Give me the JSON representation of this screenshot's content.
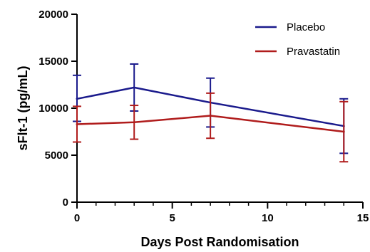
{
  "chart_data": {
    "type": "line",
    "xlabel": "Days Post Randomisation",
    "ylabel": "sFlt-1 (pg/mL)",
    "xlim": [
      0,
      15
    ],
    "ylim": [
      0,
      20000
    ],
    "x_ticks": [
      0,
      5,
      10,
      15
    ],
    "x_tick_labels": [
      "0",
      "5",
      "10",
      "15"
    ],
    "y_ticks": [
      0,
      5000,
      10000,
      15000,
      20000
    ],
    "y_tick_labels": [
      "0",
      "5000",
      "10000",
      "15000",
      "20000"
    ],
    "grid": false,
    "legend_position": "top-right",
    "series": [
      {
        "name": "Placebo",
        "color": "#1a1a8c",
        "x": [
          0,
          3,
          7,
          14
        ],
        "y": [
          11000,
          12200,
          10600,
          8100
        ],
        "err_low": [
          8600,
          9700,
          8000,
          5200
        ],
        "err_high": [
          13500,
          14700,
          13200,
          11000
        ]
      },
      {
        "name": "Pravastatin",
        "color": "#b01c1c",
        "x": [
          0,
          3,
          7,
          14
        ],
        "y": [
          8300,
          8500,
          9200,
          7500
        ],
        "err_low": [
          6400,
          6700,
          6800,
          4300
        ],
        "err_high": [
          10200,
          10300,
          11600,
          10700
        ]
      }
    ]
  }
}
